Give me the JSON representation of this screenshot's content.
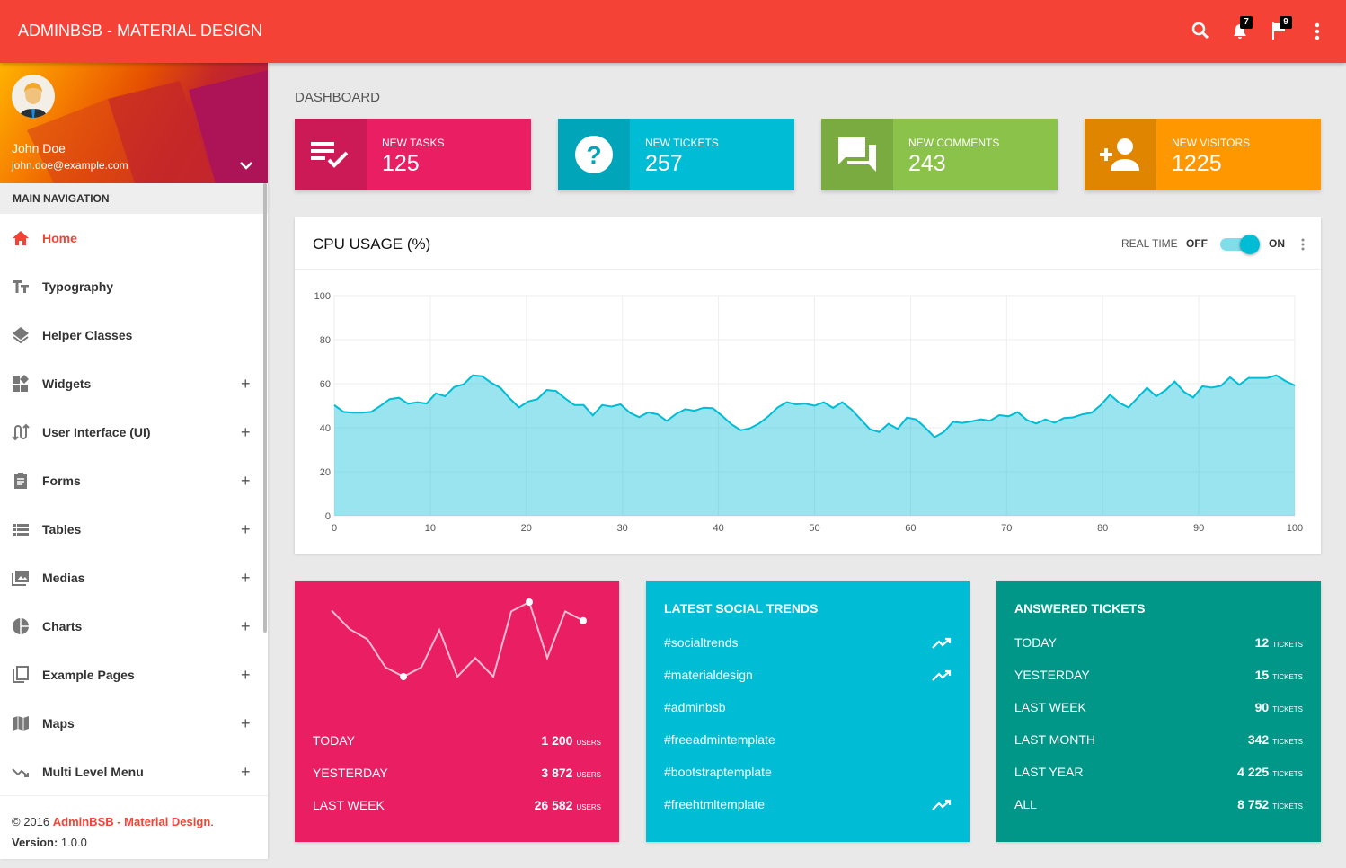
{
  "header": {
    "brand": "ADMINBSB - MATERIAL DESIGN",
    "notifications_count": "7",
    "flags_count": "9"
  },
  "user": {
    "name": "John Doe",
    "email": "john.doe@example.com"
  },
  "sidebar": {
    "header": "MAIN NAVIGATION",
    "items": [
      {
        "label": "Home",
        "icon": "home-icon",
        "active": true
      },
      {
        "label": "Typography",
        "icon": "text-fields-icon"
      },
      {
        "label": "Helper Classes",
        "icon": "layers-icon"
      },
      {
        "label": "Widgets",
        "icon": "widgets-icon",
        "expandable": true
      },
      {
        "label": "User Interface (UI)",
        "icon": "swap-calls-icon",
        "expandable": true
      },
      {
        "label": "Forms",
        "icon": "assignment-icon",
        "expandable": true
      },
      {
        "label": "Tables",
        "icon": "view-list-icon",
        "expandable": true
      },
      {
        "label": "Medias",
        "icon": "perm-media-icon",
        "expandable": true
      },
      {
        "label": "Charts",
        "icon": "pie-chart-icon",
        "expandable": true
      },
      {
        "label": "Example Pages",
        "icon": "content-copy-icon",
        "expandable": true
      },
      {
        "label": "Maps",
        "icon": "map-icon",
        "expandable": true
      },
      {
        "label": "Multi Level Menu",
        "icon": "trending-down-icon",
        "expandable": true
      }
    ],
    "plus": "+",
    "footer": {
      "copyright": "© 2016 ",
      "link": "AdminBSB - Material Design",
      "period": ".",
      "version_label": "Version: ",
      "version": "1.0.0"
    }
  },
  "page": {
    "title": "DASHBOARD"
  },
  "info_boxes": [
    {
      "label": "NEW TASKS",
      "value": "125",
      "color": "#E91E63",
      "icon": "playlist-add-check-icon"
    },
    {
      "label": "NEW TICKETS",
      "value": "257",
      "color": "#00BCD4",
      "icon": "help-icon"
    },
    {
      "label": "NEW COMMENTS",
      "value": "243",
      "color": "#8BC34A",
      "icon": "forum-icon"
    },
    {
      "label": "NEW VISITORS",
      "value": "1225",
      "color": "#FF9800",
      "icon": "person-add-icon"
    }
  ],
  "cpu": {
    "title": "CPU USAGE (%)",
    "realtime_label": "REAL TIME",
    "off": "OFF",
    "on": "ON",
    "realtime_on": true
  },
  "chart_data": {
    "type": "area",
    "xlim": [
      0,
      100
    ],
    "ylim": [
      0,
      100
    ],
    "xticks": [
      "0",
      "10",
      "20",
      "30",
      "40",
      "50",
      "60",
      "70",
      "80",
      "90",
      "100"
    ],
    "yticks": [
      "0",
      "20",
      "40",
      "60",
      "80",
      "100"
    ],
    "grid": true,
    "color": "#00BCD4",
    "values": [
      50.3,
      47.2,
      46.8,
      46.8,
      47.2,
      49.9,
      53.0,
      53.6,
      50.9,
      51.6,
      51.0,
      55.6,
      54.3,
      58.5,
      59.7,
      63.8,
      63.4,
      60.4,
      58.1,
      53.3,
      49.2,
      51.9,
      53.0,
      57.1,
      56.7,
      53.3,
      50.3,
      50.3,
      45.6,
      50.3,
      49.6,
      50.6,
      46.8,
      44.8,
      47.0,
      46.1,
      43.1,
      46.2,
      48.4,
      47.7,
      49.1,
      48.8,
      45.4,
      41.6,
      38.9,
      39.7,
      41.9,
      45.2,
      49.2,
      51.6,
      50.6,
      51.0,
      50.0,
      51.6,
      49.0,
      51.6,
      48.3,
      43.8,
      39.3,
      38.1,
      41.8,
      39.5,
      44.6,
      43.8,
      40.0,
      35.7,
      38.1,
      42.7,
      42.2,
      42.9,
      43.8,
      43.2,
      45.7,
      45.2,
      47.1,
      43.5,
      41.9,
      43.8,
      42.3,
      44.4,
      44.7,
      46.1,
      46.8,
      50.3,
      55.0,
      51.3,
      49.2,
      53.7,
      58.1,
      54.3,
      57.0,
      61.0,
      56.3,
      53.7,
      58.8,
      58.2,
      59.0,
      62.9,
      59.5,
      62.6,
      62.6,
      62.6,
      63.8,
      61.2,
      59.2
    ]
  },
  "visitors_card": {
    "color": "#E91E63",
    "sparkline": [
      7.1,
      5.1,
      4,
      1,
      0,
      1,
      5,
      0,
      2,
      0,
      7,
      8,
      2,
      7,
      6
    ],
    "sparkline_dots": [
      4,
      11,
      14
    ],
    "rows": [
      {
        "label": "TODAY",
        "value": "1 200",
        "unit": "USERS"
      },
      {
        "label": "YESTERDAY",
        "value": "3 872",
        "unit": "USERS"
      },
      {
        "label": "LAST WEEK",
        "value": "26 582",
        "unit": "USERS"
      }
    ]
  },
  "social_trends": {
    "title": "LATEST SOCIAL TRENDS",
    "color": "#00BCD4",
    "items": [
      {
        "tag": "#socialtrends",
        "trending": true
      },
      {
        "tag": "#materialdesign",
        "trending": true
      },
      {
        "tag": "#adminbsb",
        "trending": false
      },
      {
        "tag": "#freeadmintemplate",
        "trending": false
      },
      {
        "tag": "#bootstraptemplate",
        "trending": false
      },
      {
        "tag": "#freehtmltemplate",
        "trending": true
      }
    ]
  },
  "answered_tickets": {
    "title": "ANSWERED TICKETS",
    "color": "#009688",
    "rows": [
      {
        "label": "TODAY",
        "value": "12",
        "unit": "TICKETS"
      },
      {
        "label": "YESTERDAY",
        "value": "15",
        "unit": "TICKETS"
      },
      {
        "label": "LAST WEEK",
        "value": "90",
        "unit": "TICKETS"
      },
      {
        "label": "LAST MONTH",
        "value": "342",
        "unit": "TICKETS"
      },
      {
        "label": "LAST YEAR",
        "value": "4 225",
        "unit": "TICKETS"
      },
      {
        "label": "ALL",
        "value": "8 752",
        "unit": "TICKETS"
      }
    ]
  }
}
